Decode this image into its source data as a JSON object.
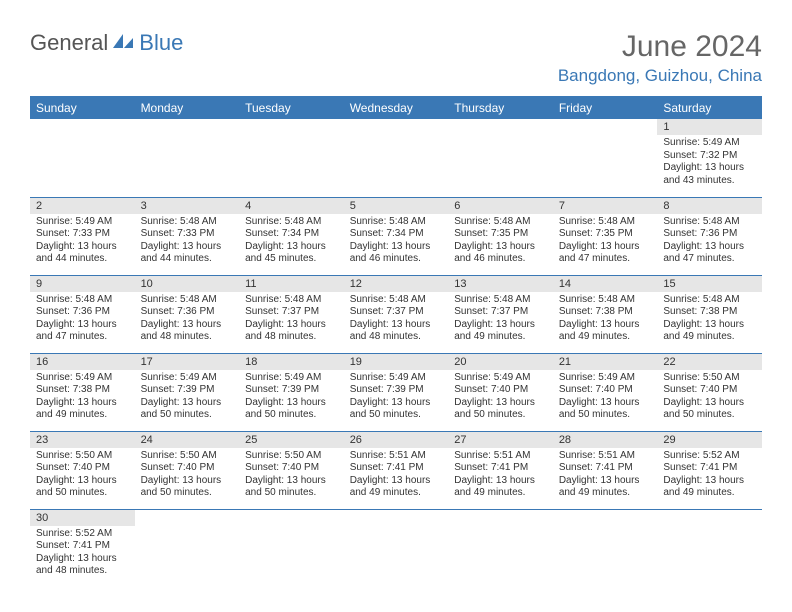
{
  "logo": {
    "part1": "General",
    "part2": "Blue"
  },
  "title": "June 2024",
  "location": "Bangdong, Guizhou, China",
  "day_headers": [
    "Sunday",
    "Monday",
    "Tuesday",
    "Wednesday",
    "Thursday",
    "Friday",
    "Saturday"
  ],
  "colors": {
    "accent": "#3a78b5",
    "header_text": "#666",
    "gray_bg": "#e6e6e6"
  },
  "weeks": [
    [
      null,
      null,
      null,
      null,
      null,
      null,
      {
        "n": "1",
        "sunrise": "Sunrise: 5:49 AM",
        "sunset": "Sunset: 7:32 PM",
        "daylight1": "Daylight: 13 hours",
        "daylight2": "and 43 minutes."
      }
    ],
    [
      {
        "n": "2",
        "sunrise": "Sunrise: 5:49 AM",
        "sunset": "Sunset: 7:33 PM",
        "daylight1": "Daylight: 13 hours",
        "daylight2": "and 44 minutes."
      },
      {
        "n": "3",
        "sunrise": "Sunrise: 5:48 AM",
        "sunset": "Sunset: 7:33 PM",
        "daylight1": "Daylight: 13 hours",
        "daylight2": "and 44 minutes."
      },
      {
        "n": "4",
        "sunrise": "Sunrise: 5:48 AM",
        "sunset": "Sunset: 7:34 PM",
        "daylight1": "Daylight: 13 hours",
        "daylight2": "and 45 minutes."
      },
      {
        "n": "5",
        "sunrise": "Sunrise: 5:48 AM",
        "sunset": "Sunset: 7:34 PM",
        "daylight1": "Daylight: 13 hours",
        "daylight2": "and 46 minutes."
      },
      {
        "n": "6",
        "sunrise": "Sunrise: 5:48 AM",
        "sunset": "Sunset: 7:35 PM",
        "daylight1": "Daylight: 13 hours",
        "daylight2": "and 46 minutes."
      },
      {
        "n": "7",
        "sunrise": "Sunrise: 5:48 AM",
        "sunset": "Sunset: 7:35 PM",
        "daylight1": "Daylight: 13 hours",
        "daylight2": "and 47 minutes."
      },
      {
        "n": "8",
        "sunrise": "Sunrise: 5:48 AM",
        "sunset": "Sunset: 7:36 PM",
        "daylight1": "Daylight: 13 hours",
        "daylight2": "and 47 minutes."
      }
    ],
    [
      {
        "n": "9",
        "sunrise": "Sunrise: 5:48 AM",
        "sunset": "Sunset: 7:36 PM",
        "daylight1": "Daylight: 13 hours",
        "daylight2": "and 47 minutes."
      },
      {
        "n": "10",
        "sunrise": "Sunrise: 5:48 AM",
        "sunset": "Sunset: 7:36 PM",
        "daylight1": "Daylight: 13 hours",
        "daylight2": "and 48 minutes."
      },
      {
        "n": "11",
        "sunrise": "Sunrise: 5:48 AM",
        "sunset": "Sunset: 7:37 PM",
        "daylight1": "Daylight: 13 hours",
        "daylight2": "and 48 minutes."
      },
      {
        "n": "12",
        "sunrise": "Sunrise: 5:48 AM",
        "sunset": "Sunset: 7:37 PM",
        "daylight1": "Daylight: 13 hours",
        "daylight2": "and 48 minutes."
      },
      {
        "n": "13",
        "sunrise": "Sunrise: 5:48 AM",
        "sunset": "Sunset: 7:37 PM",
        "daylight1": "Daylight: 13 hours",
        "daylight2": "and 49 minutes."
      },
      {
        "n": "14",
        "sunrise": "Sunrise: 5:48 AM",
        "sunset": "Sunset: 7:38 PM",
        "daylight1": "Daylight: 13 hours",
        "daylight2": "and 49 minutes."
      },
      {
        "n": "15",
        "sunrise": "Sunrise: 5:48 AM",
        "sunset": "Sunset: 7:38 PM",
        "daylight1": "Daylight: 13 hours",
        "daylight2": "and 49 minutes."
      }
    ],
    [
      {
        "n": "16",
        "sunrise": "Sunrise: 5:49 AM",
        "sunset": "Sunset: 7:38 PM",
        "daylight1": "Daylight: 13 hours",
        "daylight2": "and 49 minutes."
      },
      {
        "n": "17",
        "sunrise": "Sunrise: 5:49 AM",
        "sunset": "Sunset: 7:39 PM",
        "daylight1": "Daylight: 13 hours",
        "daylight2": "and 50 minutes."
      },
      {
        "n": "18",
        "sunrise": "Sunrise: 5:49 AM",
        "sunset": "Sunset: 7:39 PM",
        "daylight1": "Daylight: 13 hours",
        "daylight2": "and 50 minutes."
      },
      {
        "n": "19",
        "sunrise": "Sunrise: 5:49 AM",
        "sunset": "Sunset: 7:39 PM",
        "daylight1": "Daylight: 13 hours",
        "daylight2": "and 50 minutes."
      },
      {
        "n": "20",
        "sunrise": "Sunrise: 5:49 AM",
        "sunset": "Sunset: 7:40 PM",
        "daylight1": "Daylight: 13 hours",
        "daylight2": "and 50 minutes."
      },
      {
        "n": "21",
        "sunrise": "Sunrise: 5:49 AM",
        "sunset": "Sunset: 7:40 PM",
        "daylight1": "Daylight: 13 hours",
        "daylight2": "and 50 minutes."
      },
      {
        "n": "22",
        "sunrise": "Sunrise: 5:50 AM",
        "sunset": "Sunset: 7:40 PM",
        "daylight1": "Daylight: 13 hours",
        "daylight2": "and 50 minutes."
      }
    ],
    [
      {
        "n": "23",
        "sunrise": "Sunrise: 5:50 AM",
        "sunset": "Sunset: 7:40 PM",
        "daylight1": "Daylight: 13 hours",
        "daylight2": "and 50 minutes."
      },
      {
        "n": "24",
        "sunrise": "Sunrise: 5:50 AM",
        "sunset": "Sunset: 7:40 PM",
        "daylight1": "Daylight: 13 hours",
        "daylight2": "and 50 minutes."
      },
      {
        "n": "25",
        "sunrise": "Sunrise: 5:50 AM",
        "sunset": "Sunset: 7:40 PM",
        "daylight1": "Daylight: 13 hours",
        "daylight2": "and 50 minutes."
      },
      {
        "n": "26",
        "sunrise": "Sunrise: 5:51 AM",
        "sunset": "Sunset: 7:41 PM",
        "daylight1": "Daylight: 13 hours",
        "daylight2": "and 49 minutes."
      },
      {
        "n": "27",
        "sunrise": "Sunrise: 5:51 AM",
        "sunset": "Sunset: 7:41 PM",
        "daylight1": "Daylight: 13 hours",
        "daylight2": "and 49 minutes."
      },
      {
        "n": "28",
        "sunrise": "Sunrise: 5:51 AM",
        "sunset": "Sunset: 7:41 PM",
        "daylight1": "Daylight: 13 hours",
        "daylight2": "and 49 minutes."
      },
      {
        "n": "29",
        "sunrise": "Sunrise: 5:52 AM",
        "sunset": "Sunset: 7:41 PM",
        "daylight1": "Daylight: 13 hours",
        "daylight2": "and 49 minutes."
      }
    ],
    [
      {
        "n": "30",
        "sunrise": "Sunrise: 5:52 AM",
        "sunset": "Sunset: 7:41 PM",
        "daylight1": "Daylight: 13 hours",
        "daylight2": "and 48 minutes."
      },
      null,
      null,
      null,
      null,
      null,
      null
    ]
  ]
}
